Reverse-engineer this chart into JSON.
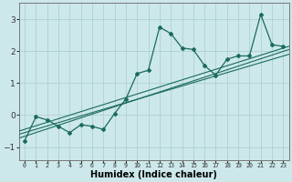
{
  "xlabel": "Humidex (Indice chaleur)",
  "ylabel": "",
  "bg_color": "#cce8ea",
  "grid_color": "#b0cfd2",
  "line_color": "#1a6b5a",
  "xlim": [
    -0.5,
    23.5
  ],
  "ylim": [
    -1.4,
    3.5
  ],
  "yticks": [
    -1,
    0,
    1,
    2,
    3
  ],
  "xtick_labels": [
    "0",
    "1",
    "2",
    "3",
    "4",
    "5",
    "6",
    "7",
    "8",
    "9",
    "10",
    "11",
    "12",
    "13",
    "14",
    "15",
    "16",
    "17",
    "18",
    "19",
    "20",
    "21",
    "22",
    "23"
  ],
  "main_x": [
    0,
    1,
    2,
    3,
    4,
    5,
    6,
    7,
    8,
    9,
    10,
    11,
    12,
    13,
    14,
    15,
    16,
    17,
    18,
    19,
    20,
    21,
    22,
    23
  ],
  "main_y": [
    -0.8,
    -0.05,
    -0.15,
    -0.35,
    -0.55,
    -0.3,
    -0.35,
    -0.45,
    0.05,
    0.5,
    1.3,
    1.4,
    2.75,
    2.55,
    2.1,
    2.05,
    1.55,
    1.25,
    1.75,
    1.85,
    1.85,
    3.15,
    2.2,
    2.15
  ],
  "reg_lines": [
    [
      [
        -0.5,
        23.5
      ],
      [
        -0.72,
        2.05
      ]
    ],
    [
      [
        -0.5,
        23.5
      ],
      [
        -0.6,
        1.9
      ]
    ],
    [
      [
        -0.5,
        23.5
      ],
      [
        -0.5,
        2.15
      ]
    ]
  ]
}
